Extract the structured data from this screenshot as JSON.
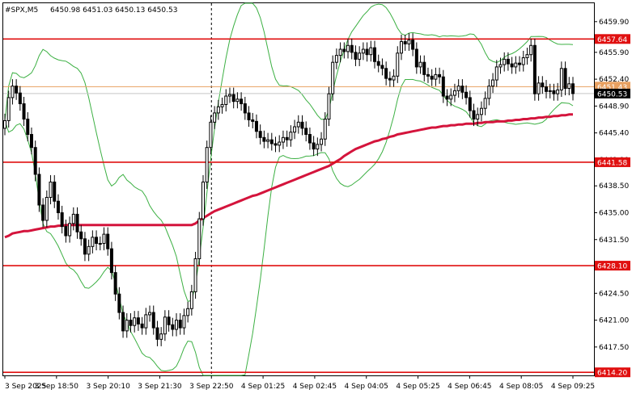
{
  "header": {
    "symbol": "#SPX,M5",
    "ohlc": "6450.98 6451.03 6450.13 6450.53"
  },
  "colors": {
    "candle": "#000000",
    "bollinger": "#3cb043",
    "moving_average": "#d4143c",
    "level_line": "#e01010",
    "current_price_line": "#c8c8c8",
    "orange_price_line": "#e8a060",
    "price_tag_red": "#e01010",
    "price_tag_black": "#000000"
  },
  "chart_data": {
    "type": "candlestick",
    "y_ticks": [
      "6459.90",
      "6455.90",
      "6452.40",
      "6448.90",
      "6445.40",
      "6441.90",
      "6438.50",
      "6435.00",
      "6431.50",
      "6428.00",
      "6424.50",
      "6421.00",
      "6417.50",
      "6414.00"
    ],
    "ylim": [
      6413.8,
      6462.3
    ],
    "x_ticks": [
      "3 Sep 2025",
      "3 Sep 18:50",
      "3 Sep 20:10",
      "3 Sep 21:30",
      "3 Sep 22:50",
      "4 Sep 01:25",
      "4 Sep 02:45",
      "4 Sep 04:05",
      "4 Sep 05:25",
      "4 Sep 06:45",
      "4 Sep 08:05",
      "4 Sep 09:25"
    ],
    "vertical_marker_at": "3 Sep 22:50",
    "levels": [
      {
        "label": "6457.64",
        "value": 6457.64
      },
      {
        "label": "6441.58",
        "value": 6441.58
      },
      {
        "label": "6428.10",
        "value": 6428.1
      },
      {
        "label": "6414.20",
        "value": 6414.2
      }
    ],
    "orange_price": {
      "label": "6451.43",
      "value": 6451.43
    },
    "current_price": {
      "label": "6450.53",
      "value": 6450.53
    },
    "close_series": [
      6447.0,
      6450.0,
      6451.5,
      6450.6,
      6449.2,
      6447.2,
      6445.2,
      6443.5,
      6440.0,
      6436.0,
      6434.0,
      6437.0,
      6439.0,
      6436.5,
      6435.0,
      6433.2,
      6432.0,
      6433.6,
      6434.8,
      6432.5,
      6431.6,
      6429.6,
      6430.6,
      6431.8,
      6431.0,
      6431.0,
      6432.2,
      6430.3,
      6427.2,
      6424.4,
      6422.0,
      6419.6,
      6421.0,
      6420.3,
      6421.3,
      6420.5,
      6420.0,
      6421.7,
      6422.0,
      6420.0,
      6418.5,
      6419.2,
      6421.4,
      6420.4,
      6419.8,
      6421.0,
      6420.0,
      6421.6,
      6422.5,
      6424.7,
      6429.0,
      6434.2,
      6439.0,
      6443.5,
      6446.8,
      6448.0,
      6448.8,
      6449.1,
      6450.2,
      6450.4,
      6449.5,
      6449.8,
      6449.2,
      6448.0,
      6447.1,
      6446.9,
      6445.6,
      6444.8,
      6444.3,
      6444.5,
      6444.0,
      6443.8,
      6444.2,
      6444.8,
      6444.5,
      6445.5,
      6446.2,
      6446.8,
      6446.0,
      6445.2,
      6444.1,
      6443.3,
      6443.9,
      6444.6,
      6447.2,
      6450.5,
      6454.6,
      6455.5,
      6456.3,
      6456.0,
      6456.8,
      6455.9,
      6455.0,
      6455.8,
      6456.3,
      6455.6,
      6456.5,
      6454.7,
      6454.2,
      6453.8,
      6452.5,
      6452.3,
      6452.8,
      6455.8,
      6457.3,
      6457.0,
      6457.5,
      6456.3,
      6454.0,
      6454.6,
      6453.0,
      6452.8,
      6452.4,
      6453.0,
      6452.7,
      6450.2,
      6449.8,
      6450.3,
      6450.9,
      6451.5,
      6450.7,
      6450.0,
      6448.3,
      6447.2,
      6447.8,
      6448.6,
      6449.9,
      6451.5,
      6452.3,
      6454.0,
      6454.3,
      6455.0,
      6454.4,
      6454.0,
      6454.5,
      6454.3,
      6455.2,
      6455.6,
      6456.8,
      6450.5,
      6451.9,
      6451.4,
      6450.8,
      6450.9,
      6450.5,
      6451.0,
      6453.8,
      6451.2,
      6451.8,
      6450.53
    ],
    "ma_series": [
      6431.8,
      6432.0,
      6432.3,
      6432.4,
      6432.5,
      6432.6,
      6432.6,
      6432.7,
      6432.8,
      6432.9,
      6433.0,
      6433.1,
      6433.2,
      6433.2,
      6433.3,
      6433.3,
      6433.4,
      6433.4,
      6433.4,
      6433.4,
      6433.4,
      6433.4,
      6433.4,
      6433.4,
      6433.4,
      6433.4,
      6433.4,
      6433.4,
      6433.4,
      6433.4,
      6433.4,
      6433.4,
      6433.4,
      6433.4,
      6433.4,
      6433.4,
      6433.4,
      6433.4,
      6433.4,
      6433.4,
      6433.4,
      6433.4,
      6433.4,
      6433.4,
      6433.4,
      6433.4,
      6433.4,
      6433.4,
      6433.4,
      6433.4,
      6433.6,
      6434.0,
      6434.3,
      6434.6,
      6434.9,
      6435.2,
      6435.4,
      6435.6,
      6435.8,
      6436.0,
      6436.2,
      6436.4,
      6436.6,
      6436.8,
      6437.0,
      6437.2,
      6437.3,
      6437.5,
      6437.7,
      6437.9,
      6438.1,
      6438.3,
      6438.5,
      6438.7,
      6438.9,
      6439.1,
      6439.3,
      6439.5,
      6439.7,
      6439.9,
      6440.1,
      6440.3,
      6440.5,
      6440.7,
      6440.9,
      6441.1,
      6441.4,
      6441.7,
      6442.0,
      6442.4,
      6442.7,
      6443.0,
      6443.3,
      6443.5,
      6443.7,
      6443.9,
      6444.1,
      6444.3,
      6444.4,
      6444.6,
      6444.7,
      6444.9,
      6445.0,
      6445.2,
      6445.3,
      6445.4,
      6445.5,
      6445.6,
      6445.7,
      6445.8,
      6445.9,
      6446.0,
      6446.1,
      6446.1,
      6446.2,
      6446.3,
      6446.3,
      6446.4,
      6446.4,
      6446.5,
      6446.5,
      6446.6,
      6446.6,
      6446.6,
      6446.7,
      6446.7,
      6446.8,
      6446.8,
      6446.8,
      6446.9,
      6446.9,
      6446.9,
      6447.0,
      6447.0,
      6447.1,
      6447.1,
      6447.2,
      6447.2,
      6447.3,
      6447.3,
      6447.4,
      6447.4,
      6447.5,
      6447.5,
      6447.6,
      6447.6,
      6447.7,
      6447.7,
      6447.8,
      6447.8
    ]
  }
}
